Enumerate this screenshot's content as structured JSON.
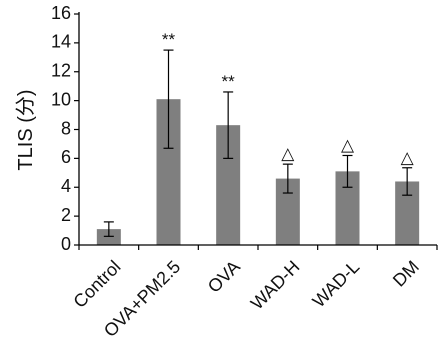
{
  "chart_data": {
    "type": "bar",
    "categories": [
      "Control",
      "OVA+PM2.5",
      "OVA",
      "WAD-H",
      "WAD-L",
      "DM"
    ],
    "values": [
      1.1,
      10.1,
      8.3,
      4.6,
      5.1,
      4.4
    ],
    "error": [
      0.5,
      3.4,
      2.3,
      1.0,
      1.1,
      0.95
    ],
    "annotations": [
      "",
      "**",
      "**",
      "△",
      "△",
      "△"
    ],
    "ylabel": "TLIS (分)",
    "xlabel": "",
    "title": "",
    "ylim": [
      0,
      16
    ],
    "yticks": [
      "0",
      "2",
      "4",
      "6",
      "8",
      "10",
      "12",
      "14",
      "16"
    ],
    "grid": false,
    "bar_color": "#7f7f7f"
  }
}
